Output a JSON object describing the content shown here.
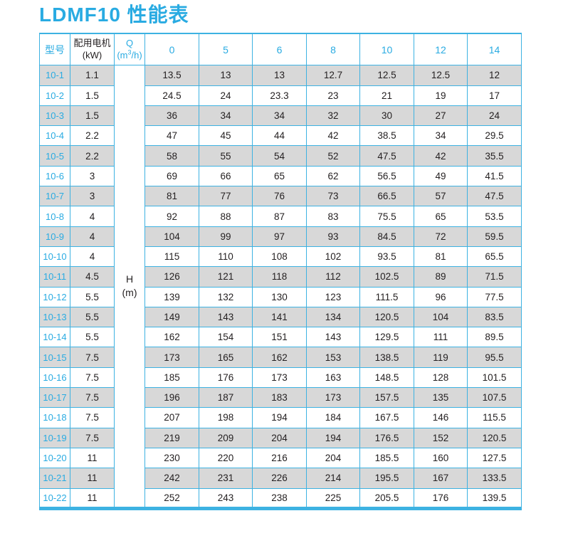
{
  "title": "LDMF10 性能表",
  "colors": {
    "accent": "#29abe2",
    "table_border": "#3db2e2",
    "row_stripe": "#d8d8d8",
    "text": "#231f20"
  },
  "chart_data": {
    "type": "table",
    "title": "LDMF10 性能表",
    "header": {
      "model": "型号",
      "motor_line1": "配用电机",
      "motor_line2": "(kW)",
      "q_line1": "Q",
      "q_unit_pre": "(m",
      "q_unit_sup": "3",
      "q_unit_post": "/h)",
      "flow_rates": [
        "0",
        "5",
        "6",
        "8",
        "10",
        "12",
        "14"
      ]
    },
    "h_column": {
      "line1": "H",
      "line2": "(m)"
    },
    "rows": [
      {
        "model": "10-1",
        "motor": "1.1",
        "values": [
          "13.5",
          "13",
          "13",
          "12.7",
          "12.5",
          "12.5",
          "12"
        ]
      },
      {
        "model": "10-2",
        "motor": "1.5",
        "values": [
          "24.5",
          "24",
          "23.3",
          "23",
          "21",
          "19",
          "17"
        ]
      },
      {
        "model": "10-3",
        "motor": "1.5",
        "values": [
          "36",
          "34",
          "34",
          "32",
          "30",
          "27",
          "24"
        ]
      },
      {
        "model": "10-4",
        "motor": "2.2",
        "values": [
          "47",
          "45",
          "44",
          "42",
          "38.5",
          "34",
          "29.5"
        ]
      },
      {
        "model": "10-5",
        "motor": "2.2",
        "values": [
          "58",
          "55",
          "54",
          "52",
          "47.5",
          "42",
          "35.5"
        ]
      },
      {
        "model": "10-6",
        "motor": "3",
        "values": [
          "69",
          "66",
          "65",
          "62",
          "56.5",
          "49",
          "41.5"
        ]
      },
      {
        "model": "10-7",
        "motor": "3",
        "values": [
          "81",
          "77",
          "76",
          "73",
          "66.5",
          "57",
          "47.5"
        ]
      },
      {
        "model": "10-8",
        "motor": "4",
        "values": [
          "92",
          "88",
          "87",
          "83",
          "75.5",
          "65",
          "53.5"
        ]
      },
      {
        "model": "10-9",
        "motor": "4",
        "values": [
          "104",
          "99",
          "97",
          "93",
          "84.5",
          "72",
          "59.5"
        ]
      },
      {
        "model": "10-10",
        "motor": "4",
        "values": [
          "115",
          "110",
          "108",
          "102",
          "93.5",
          "81",
          "65.5"
        ]
      },
      {
        "model": "10-11",
        "motor": "4.5",
        "values": [
          "126",
          "121",
          "118",
          "112",
          "102.5",
          "89",
          "71.5"
        ]
      },
      {
        "model": "10-12",
        "motor": "5.5",
        "values": [
          "139",
          "132",
          "130",
          "123",
          "111.5",
          "96",
          "77.5"
        ]
      },
      {
        "model": "10-13",
        "motor": "5.5",
        "values": [
          "149",
          "143",
          "141",
          "134",
          "120.5",
          "104",
          "83.5"
        ]
      },
      {
        "model": "10-14",
        "motor": "5.5",
        "values": [
          "162",
          "154",
          "151",
          "143",
          "129.5",
          "111",
          "89.5"
        ]
      },
      {
        "model": "10-15",
        "motor": "7.5",
        "values": [
          "173",
          "165",
          "162",
          "153",
          "138.5",
          "119",
          "95.5"
        ]
      },
      {
        "model": "10-16",
        "motor": "7.5",
        "values": [
          "185",
          "176",
          "173",
          "163",
          "148.5",
          "128",
          "101.5"
        ]
      },
      {
        "model": "10-17",
        "motor": "7.5",
        "values": [
          "196",
          "187",
          "183",
          "173",
          "157.5",
          "135",
          "107.5"
        ]
      },
      {
        "model": "10-18",
        "motor": "7.5",
        "values": [
          "207",
          "198",
          "194",
          "184",
          "167.5",
          "146",
          "115.5"
        ]
      },
      {
        "model": "10-19",
        "motor": "7.5",
        "values": [
          "219",
          "209",
          "204",
          "194",
          "176.5",
          "152",
          "120.5"
        ]
      },
      {
        "model": "10-20",
        "motor": "11",
        "values": [
          "230",
          "220",
          "216",
          "204",
          "185.5",
          "160",
          "127.5"
        ]
      },
      {
        "model": "10-21",
        "motor": "11",
        "values": [
          "242",
          "231",
          "226",
          "214",
          "195.5",
          "167",
          "133.5"
        ]
      },
      {
        "model": "10-22",
        "motor": "11",
        "values": [
          "252",
          "243",
          "238",
          "225",
          "205.5",
          "176",
          "139.5"
        ]
      }
    ]
  }
}
